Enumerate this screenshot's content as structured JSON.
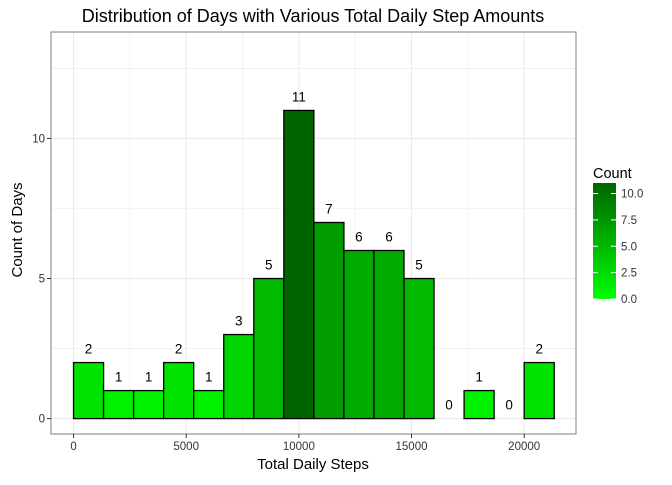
{
  "chart_data": {
    "type": "bar",
    "title": "Distribution of Days with Various Total Daily Step Amounts",
    "xlabel": "Total Daily Steps",
    "ylabel": "Count of Days",
    "bin_width": 1333.33,
    "bins": [
      {
        "x_min": 0,
        "x_max": 1333.33,
        "count": 2
      },
      {
        "x_min": 1333.33,
        "x_max": 2666.67,
        "count": 1
      },
      {
        "x_min": 2666.67,
        "x_max": 4000,
        "count": 1
      },
      {
        "x_min": 4000,
        "x_max": 5333.33,
        "count": 2
      },
      {
        "x_min": 5333.33,
        "x_max": 6666.67,
        "count": 1
      },
      {
        "x_min": 6666.67,
        "x_max": 8000,
        "count": 3
      },
      {
        "x_min": 8000,
        "x_max": 9333.33,
        "count": 5
      },
      {
        "x_min": 9333.33,
        "x_max": 10666.67,
        "count": 11
      },
      {
        "x_min": 10666.67,
        "x_max": 12000,
        "count": 7
      },
      {
        "x_min": 12000,
        "x_max": 13333.33,
        "count": 6
      },
      {
        "x_min": 13333.33,
        "x_max": 14666.67,
        "count": 6
      },
      {
        "x_min": 14666.67,
        "x_max": 16000,
        "count": 5
      },
      {
        "x_min": 16000,
        "x_max": 17333.33,
        "count": 0
      },
      {
        "x_min": 17333.33,
        "x_max": 18666.67,
        "count": 1
      },
      {
        "x_min": 18666.67,
        "x_max": 20000,
        "count": 0
      },
      {
        "x_min": 20000,
        "x_max": 21333.33,
        "count": 2
      }
    ],
    "xlim": [
      -1000,
      22300
    ],
    "ylim": [
      -0.55,
      13.8
    ],
    "x_ticks": [
      0,
      5000,
      10000,
      15000,
      20000
    ],
    "x_tick_labels": [
      "0",
      "5000",
      "10000",
      "15000",
      "20000"
    ],
    "y_ticks": [
      0,
      5,
      10
    ],
    "y_tick_labels": [
      "0",
      "5",
      "10"
    ],
    "grid": true,
    "legend": {
      "title": "Count",
      "placement": "right",
      "breaks": [
        0,
        2.5,
        5,
        7.5,
        10
      ],
      "labels": [
        "0.0",
        "2.5",
        "5.0",
        "7.5",
        "10.0"
      ],
      "range": [
        0,
        11
      ]
    },
    "colors": {
      "low": "#00ff00",
      "high": "#006400",
      "bar_outline": "#000000",
      "grid": "#ebebeb",
      "panel_border": "#7f7f7f"
    }
  }
}
